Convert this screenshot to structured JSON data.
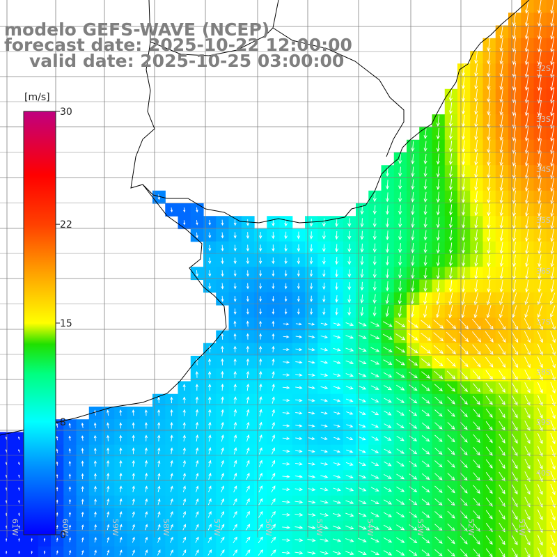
{
  "title": {
    "model": "modelo GEFS-WAVE (NCEP)",
    "forecast": "forecast date: 2025-10-22 12:00:00",
    "valid": "valid date: 2025-10-25 03:00:00"
  },
  "colorbar": {
    "unit": "[m/s]",
    "min": 0,
    "max": 30,
    "ticks": [
      {
        "value": 30,
        "label": "30"
      },
      {
        "value": 22,
        "label": "22"
      },
      {
        "value": 15,
        "label": "15"
      },
      {
        "value": 8,
        "label": "8"
      },
      {
        "value": 0,
        "label": "0"
      }
    ],
    "colors": [
      "#0000ff",
      "#00a0ff",
      "#00ffff",
      "#00ff00",
      "#ffff00",
      "#ff8000",
      "#ff0000",
      "#c00080"
    ]
  },
  "latitude_labels": [
    "32S",
    "33S",
    "34S",
    "35S",
    "36S",
    "37S",
    "38S",
    "39S",
    "40S"
  ],
  "longitude_labels": [
    "61W",
    "60W",
    "59W",
    "58W",
    "57W",
    "56W",
    "55W",
    "54W",
    "53W",
    "52W",
    "51W"
  ],
  "colors": {
    "land": "#ffffff",
    "coast": "#000000",
    "grid": "#808080",
    "title": "#7f7f7f",
    "arrow": "#ffffff"
  }
}
